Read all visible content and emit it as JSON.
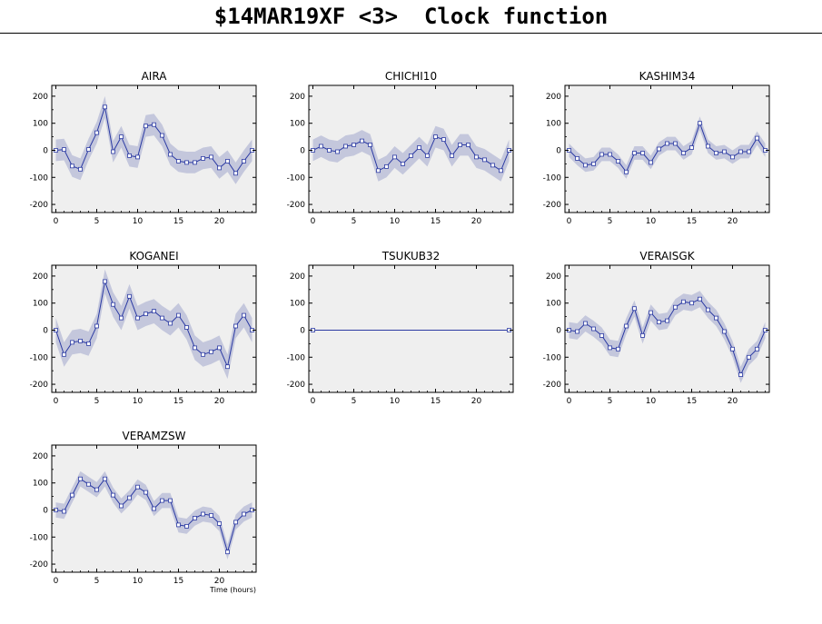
{
  "header": {
    "title": "$14MAR19XF <3>  Clock function"
  },
  "colors": {
    "panel_bg": "#efefef",
    "band": "#c4c7dc",
    "line": "#2b3aa3",
    "axis": "#000000"
  },
  "chart_data": [
    {
      "type": "line",
      "title": "AIRA",
      "xlabel": "",
      "ylabel": "",
      "xlim": [
        -0.5,
        24.5
      ],
      "ylim": [
        -230,
        240
      ],
      "x_ticks": [
        0,
        5,
        10,
        15,
        20
      ],
      "y_ticks": [
        -200,
        -100,
        0,
        100,
        200
      ],
      "x": [
        0,
        1,
        2,
        3,
        4,
        5,
        6,
        7,
        8,
        9,
        10,
        11,
        12,
        13,
        14,
        15,
        16,
        17,
        18,
        19,
        20,
        21,
        22,
        23,
        24
      ],
      "values": [
        0,
        3,
        -58,
        -70,
        3,
        65,
        160,
        -5,
        50,
        -20,
        -25,
        90,
        95,
        55,
        -15,
        -40,
        -45,
        -45,
        -30,
        -25,
        -65,
        -40,
        -85,
        -40,
        0
      ],
      "band": 40
    },
    {
      "type": "line",
      "title": "CHICHI10",
      "xlabel": "",
      "ylabel": "",
      "xlim": [
        -0.5,
        24.5
      ],
      "ylim": [
        -230,
        240
      ],
      "x_ticks": [
        0,
        5,
        10,
        15,
        20
      ],
      "y_ticks": [
        -200,
        -100,
        0,
        100,
        200
      ],
      "x": [
        0,
        1,
        2,
        3,
        4,
        5,
        6,
        7,
        8,
        9,
        10,
        11,
        12,
        13,
        14,
        15,
        16,
        17,
        18,
        19,
        20,
        21,
        22,
        23,
        24
      ],
      "values": [
        0,
        15,
        0,
        -5,
        15,
        20,
        35,
        20,
        -75,
        -60,
        -25,
        -50,
        -20,
        10,
        -20,
        50,
        40,
        -20,
        20,
        20,
        -25,
        -35,
        -55,
        -75,
        0
      ],
      "band": 40
    },
    {
      "type": "line",
      "title": "KASHIM34",
      "xlabel": "",
      "ylabel": "",
      "xlim": [
        -0.5,
        24.5
      ],
      "ylim": [
        -230,
        240
      ],
      "x_ticks": [
        0,
        5,
        10,
        15,
        20
      ],
      "y_ticks": [
        -200,
        -100,
        0,
        100,
        200
      ],
      "x": [
        0,
        1,
        2,
        3,
        4,
        5,
        6,
        7,
        8,
        9,
        10,
        11,
        12,
        13,
        14,
        15,
        16,
        17,
        18,
        19,
        20,
        21,
        22,
        23,
        24
      ],
      "values": [
        0,
        -30,
        -55,
        -50,
        -15,
        -15,
        -40,
        -80,
        -10,
        -10,
        -45,
        5,
        25,
        25,
        -10,
        10,
        100,
        15,
        -10,
        -5,
        -25,
        -5,
        -5,
        45,
        0
      ],
      "band": 25
    },
    {
      "type": "line",
      "title": "KOGANEI",
      "xlabel": "",
      "ylabel": "",
      "xlim": [
        -0.5,
        24.5
      ],
      "ylim": [
        -230,
        240
      ],
      "x_ticks": [
        0,
        5,
        10,
        15,
        20
      ],
      "y_ticks": [
        -200,
        -100,
        0,
        100,
        200
      ],
      "x": [
        0,
        1,
        2,
        3,
        4,
        5,
        6,
        7,
        8,
        9,
        10,
        11,
        12,
        13,
        14,
        15,
        16,
        17,
        18,
        19,
        20,
        21,
        22,
        23,
        24
      ],
      "values": [
        0,
        -90,
        -45,
        -40,
        -50,
        15,
        180,
        95,
        45,
        125,
        45,
        60,
        70,
        45,
        25,
        55,
        10,
        -65,
        -90,
        -80,
        -65,
        -135,
        15,
        55,
        0
      ],
      "band": 45
    },
    {
      "type": "line",
      "title": "TSUKUB32",
      "xlabel": "",
      "ylabel": "",
      "xlim": [
        -0.5,
        24.5
      ],
      "ylim": [
        -230,
        240
      ],
      "x_ticks": [
        0,
        5,
        10,
        15,
        20
      ],
      "y_ticks": [
        -200,
        -100,
        0,
        100,
        200
      ],
      "x": [
        0,
        24
      ],
      "values": [
        0,
        0
      ],
      "band": 0
    },
    {
      "type": "line",
      "title": "VERAISGK",
      "xlabel": "",
      "ylabel": "",
      "xlim": [
        -0.5,
        24.5
      ],
      "ylim": [
        -230,
        240
      ],
      "x_ticks": [
        0,
        5,
        10,
        15,
        20
      ],
      "y_ticks": [
        -200,
        -100,
        0,
        100,
        200
      ],
      "x": [
        0,
        1,
        2,
        3,
        4,
        5,
        6,
        7,
        8,
        9,
        10,
        11,
        12,
        13,
        14,
        15,
        16,
        17,
        18,
        19,
        20,
        21,
        22,
        23,
        24
      ],
      "values": [
        0,
        -5,
        25,
        5,
        -20,
        -65,
        -70,
        15,
        80,
        -20,
        65,
        30,
        35,
        85,
        105,
        100,
        115,
        75,
        45,
        -5,
        -70,
        -165,
        -100,
        -70,
        0
      ],
      "band": 30
    },
    {
      "type": "line",
      "title": "VERAMZSW",
      "xlabel": "Time (hours)",
      "ylabel": "",
      "xlim": [
        -0.5,
        24.5
      ],
      "ylim": [
        -230,
        240
      ],
      "x_ticks": [
        0,
        5,
        10,
        15,
        20
      ],
      "y_ticks": [
        -200,
        -100,
        0,
        100,
        200
      ],
      "x": [
        0,
        1,
        2,
        3,
        4,
        5,
        6,
        7,
        8,
        9,
        10,
        11,
        12,
        13,
        14,
        15,
        16,
        17,
        18,
        19,
        20,
        21,
        22,
        23,
        24
      ],
      "values": [
        0,
        -5,
        55,
        115,
        95,
        75,
        115,
        55,
        15,
        45,
        85,
        65,
        5,
        35,
        35,
        -55,
        -60,
        -30,
        -15,
        -20,
        -50,
        -155,
        -45,
        -15,
        0
      ],
      "band": 28
    }
  ]
}
